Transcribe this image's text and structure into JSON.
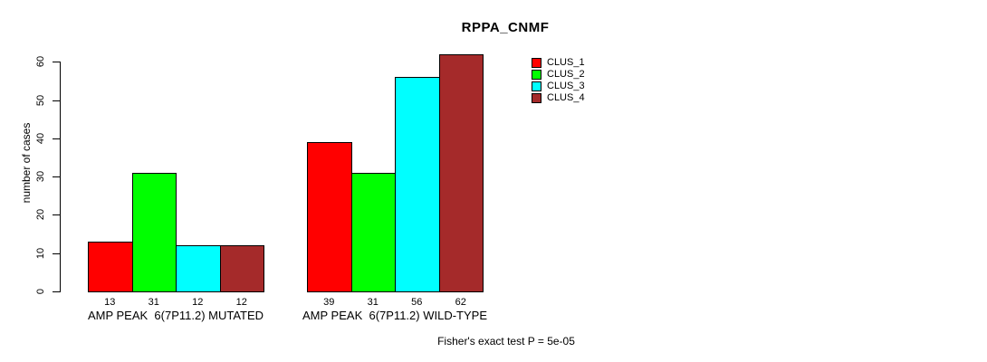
{
  "chart_data": {
    "type": "bar",
    "title": "RPPA_CNMF",
    "ylabel": "number of cases",
    "xlabel": "",
    "ylim": [
      0,
      60
    ],
    "yticks": [
      0,
      10,
      20,
      30,
      40,
      50,
      60
    ],
    "grid": false,
    "bar_value_labels": true,
    "legend_position": "top-right",
    "categories": [
      "AMP PEAK  6(7P11.2) MUTATED",
      "AMP PEAK  6(7P11.2) WILD-TYPE"
    ],
    "series": [
      {
        "name": "CLUS_1",
        "color": "#FF0000",
        "values": [
          13,
          39
        ]
      },
      {
        "name": "CLUS_2",
        "color": "#00FF00",
        "values": [
          31,
          31
        ]
      },
      {
        "name": "CLUS_3",
        "color": "#00FFFF",
        "values": [
          12,
          56
        ]
      },
      {
        "name": "CLUS_4",
        "color": "#A52A2A",
        "values": [
          12,
          62
        ]
      }
    ],
    "annotation": "Fisher's exact test P = 5e-05"
  }
}
